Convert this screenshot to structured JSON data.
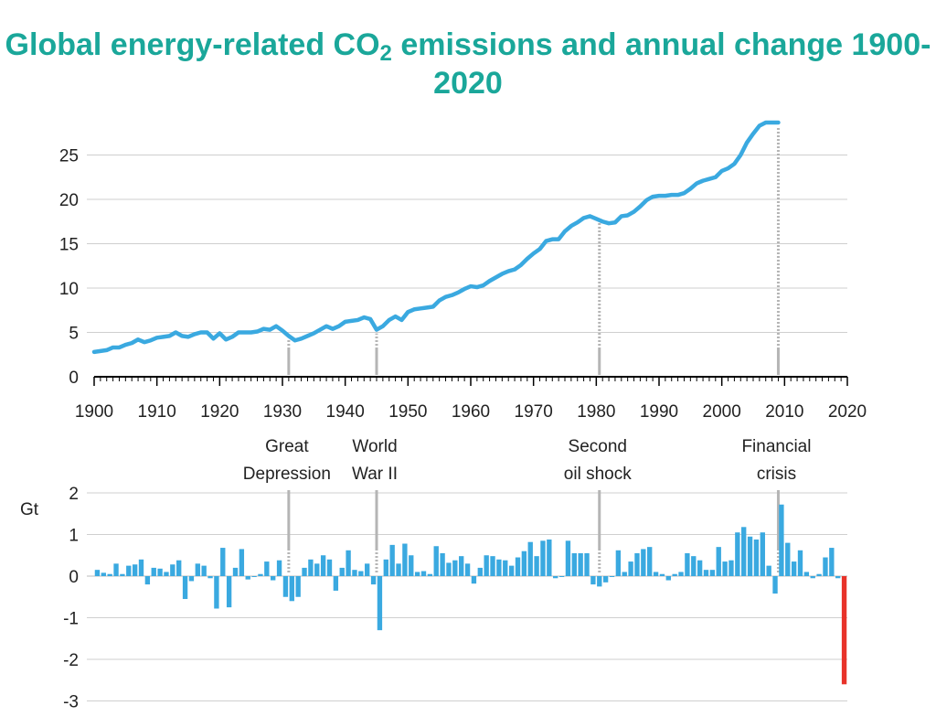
{
  "chart_data": [
    {
      "type": "line",
      "title_main": "Global energy-related CO",
      "title_sub": "2",
      "title_rest": " emissions and annual change 1900-2020",
      "xlim": [
        1900,
        2020
      ],
      "ylim": [
        0,
        29
      ],
      "x_ticks": [
        "1900",
        "1910",
        "1920",
        "1930",
        "1940",
        "1950",
        "1960",
        "1970",
        "1980",
        "1990",
        "2000",
        "2010",
        "2020"
      ],
      "y_ticks": [
        "0",
        "5",
        "10",
        "15",
        "20",
        "25"
      ],
      "grid": "horizontal",
      "line_color": "#3aa9e0",
      "series": [
        {
          "x": [
            1900,
            1901,
            1902,
            1903,
            1904,
            1905,
            1906,
            1907,
            1908,
            1909,
            1910,
            1911,
            1912,
            1913,
            1914,
            1915,
            1916,
            1917,
            1918,
            1919,
            1920,
            1921,
            1922,
            1923,
            1924,
            1925,
            1926,
            1927,
            1928,
            1929,
            1930,
            1931,
            1932,
            1933,
            1934,
            1935,
            1936,
            1937,
            1938,
            1939,
            1940,
            1941,
            1942,
            1943,
            1944,
            1945,
            1946,
            1947,
            1948,
            1949,
            1950,
            1951,
            1952,
            1953,
            1954,
            1955,
            1956,
            1957,
            1958,
            1959,
            1960,
            1961,
            1962,
            1963,
            1964,
            1965,
            1966,
            1967,
            1968,
            1969,
            1970,
            1971,
            1972,
            1973,
            1974,
            1975,
            1976,
            1977,
            1978,
            1979,
            1980,
            1981,
            1982,
            1983,
            1984,
            1985,
            1986,
            1987,
            1988,
            1989,
            1990,
            1991,
            1992,
            1993,
            1994,
            1995,
            1996,
            1997,
            1998,
            1999,
            2000,
            2001,
            2002,
            2003,
            2004,
            2005,
            2006,
            2007,
            2008,
            2009
          ],
          "y": [
            2.8,
            2.9,
            3.0,
            3.3,
            3.3,
            3.6,
            3.8,
            4.2,
            3.9,
            4.1,
            4.4,
            4.5,
            4.6,
            5.0,
            4.6,
            4.5,
            4.8,
            5.0,
            5.0,
            4.3,
            4.9,
            4.2,
            4.5,
            5.0,
            5.0,
            5.0,
            5.1,
            5.4,
            5.3,
            5.7,
            5.2,
            4.6,
            4.1,
            4.3,
            4.6,
            4.9,
            5.3,
            5.7,
            5.4,
            5.7,
            6.2,
            6.3,
            6.4,
            6.7,
            6.5,
            5.3,
            5.7,
            6.4,
            6.8,
            6.4,
            7.3,
            7.6,
            7.7,
            7.8,
            7.9,
            8.6,
            9.0,
            9.2,
            9.5,
            9.9,
            10.2,
            10.1,
            10.3,
            10.8,
            11.2,
            11.6,
            11.9,
            12.1,
            12.6,
            13.3,
            13.9,
            14.4,
            15.3,
            15.5,
            15.5,
            16.4,
            17.0,
            17.4,
            17.9,
            18.1,
            17.8,
            17.5,
            17.3,
            17.4,
            18.1,
            18.2,
            18.6,
            19.2,
            19.9,
            20.3,
            20.4,
            20.4,
            20.5,
            20.5,
            20.7,
            21.2,
            21.8,
            22.1,
            22.3,
            22.5,
            23.2,
            23.5,
            24.0,
            25.0,
            26.4,
            27.4,
            28.3,
            29.2,
            29.5,
            29.3
          ]
        }
      ]
    },
    {
      "type": "bar",
      "ylabel": "Gt",
      "xlim": [
        1900,
        2020
      ],
      "ylim": [
        -3,
        2
      ],
      "y_ticks": [
        "2",
        "1",
        "0",
        "-1",
        "-2",
        "-3"
      ],
      "grid": "horizontal",
      "bar_color": "#3aa9e0",
      "highlight_color": "#e8332a",
      "highlight_year": 2020,
      "years_start": 1901,
      "values": [
        0.15,
        0.08,
        0.05,
        0.3,
        0.05,
        0.25,
        0.28,
        0.4,
        -0.2,
        0.2,
        0.18,
        0.1,
        0.28,
        0.38,
        -0.55,
        -0.12,
        0.3,
        0.25,
        -0.05,
        -0.78,
        0.68,
        -0.75,
        0.2,
        0.65,
        -0.08,
        0.0,
        0.05,
        0.35,
        -0.1,
        0.38,
        -0.5,
        -0.6,
        -0.5,
        0.2,
        0.4,
        0.3,
        0.5,
        0.4,
        -0.35,
        0.2,
        0.62,
        0.15,
        0.12,
        0.3,
        -0.2,
        -1.3,
        0.4,
        0.75,
        0.3,
        0.78,
        0.5,
        0.1,
        0.12,
        0.05,
        0.72,
        0.55,
        0.32,
        0.38,
        0.48,
        0.3,
        -0.18,
        0.2,
        0.5,
        0.48,
        0.4,
        0.38,
        0.25,
        0.45,
        0.6,
        0.82,
        0.48,
        0.85,
        0.88,
        -0.05,
        0.0,
        0.85,
        0.55,
        0.55,
        0.55,
        -0.2,
        -0.25,
        -0.15,
        0.0,
        0.62,
        0.1,
        0.35,
        0.55,
        0.65,
        0.7,
        0.1,
        0.05,
        -0.1,
        0.05,
        0.1,
        0.55,
        0.48,
        0.38,
        0.15,
        0.15,
        0.7,
        0.35,
        0.38,
        1.05,
        1.18,
        0.95,
        0.88,
        1.05,
        0.25,
        -0.42,
        1.72,
        0.8,
        0.35,
        0.62,
        0.1,
        -0.05,
        0.05,
        0.45,
        0.68,
        -0.05,
        -2.6
      ]
    },
    {
      "type": "annotations",
      "events": [
        {
          "year": 1931,
          "label1": "Great",
          "label2": "Depression"
        },
        {
          "year": 1945,
          "label1": "World",
          "label2": "War II"
        },
        {
          "year": 1980.5,
          "label1": "Second",
          "label2": "oil shock"
        },
        {
          "year": 2009,
          "label1": "Financial",
          "label2": "crisis"
        }
      ]
    }
  ]
}
